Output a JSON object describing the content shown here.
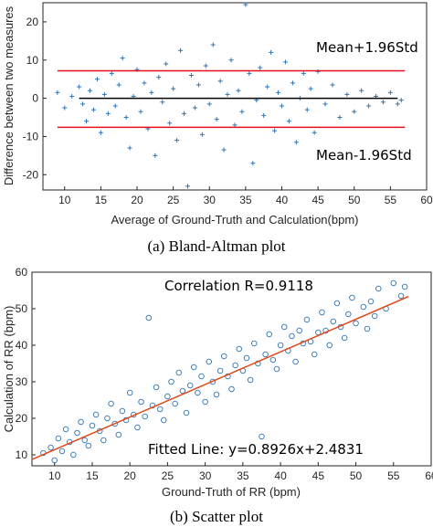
{
  "chart_data": [
    {
      "type": "scatter",
      "marker": "plus",
      "caption": "(a) Bland-Altman plot",
      "xlabel": "Average of Ground-Truth and Calculation(bpm)",
      "ylabel": "Difference between two measures",
      "xlim": [
        7,
        60
      ],
      "ylim": [
        -24,
        25
      ],
      "xticks": [
        10,
        15,
        20,
        25,
        30,
        35,
        40,
        45,
        50,
        55,
        60
      ],
      "yticks": [
        -20,
        -10,
        0,
        10,
        20
      ],
      "grid": false,
      "colors": {
        "points": "#2e75b6",
        "limits": "#e8101c",
        "mean": "#000000"
      },
      "reference_lines": {
        "mean_plus_1_96std": 7.2,
        "mean": 0,
        "mean_minus_1_96std": -7.6
      },
      "annotations": [
        "Mean+1.96Std",
        "Mean-1.96Std"
      ],
      "points": [
        [
          9.0,
          1.5
        ],
        [
          10.0,
          -2.5
        ],
        [
          11.0,
          0.5
        ],
        [
          12.0,
          3.0
        ],
        [
          12.5,
          -1.5
        ],
        [
          13.0,
          -6.0
        ],
        [
          13.5,
          2.0
        ],
        [
          14.0,
          -3.0
        ],
        [
          14.5,
          5.0
        ],
        [
          15.0,
          -9.0
        ],
        [
          15.5,
          1.0
        ],
        [
          16.0,
          -4.0
        ],
        [
          16.5,
          6.5
        ],
        [
          17.0,
          -2.0
        ],
        [
          17.5,
          3.5
        ],
        [
          18.0,
          10.5
        ],
        [
          18.5,
          -5.0
        ],
        [
          19.0,
          -13.0
        ],
        [
          19.5,
          0.5
        ],
        [
          20.0,
          7.5
        ],
        [
          20.5,
          -3.5
        ],
        [
          21.0,
          4.0
        ],
        [
          21.5,
          -8.0
        ],
        [
          22.0,
          1.5
        ],
        [
          22.5,
          -15.0
        ],
        [
          23.0,
          5.5
        ],
        [
          23.5,
          -1.0
        ],
        [
          24.0,
          9.0
        ],
        [
          24.5,
          -6.5
        ],
        [
          25.0,
          2.5
        ],
        [
          25.5,
          -11.0
        ],
        [
          26.0,
          12.5
        ],
        [
          26.5,
          -4.0
        ],
        [
          27.0,
          -23.0
        ],
        [
          27.5,
          6.0
        ],
        [
          28.0,
          -2.5
        ],
        [
          28.5,
          3.5
        ],
        [
          29.0,
          -9.5
        ],
        [
          29.5,
          8.5
        ],
        [
          30.0,
          -1.5
        ],
        [
          30.5,
          14.0
        ],
        [
          31.0,
          -5.5
        ],
        [
          31.5,
          4.5
        ],
        [
          32.0,
          -13.5
        ],
        [
          32.5,
          1.0
        ],
        [
          33.0,
          10.0
        ],
        [
          33.5,
          -7.0
        ],
        [
          34.0,
          2.0
        ],
        [
          34.5,
          -3.5
        ],
        [
          35.0,
          24.5
        ],
        [
          35.5,
          6.5
        ],
        [
          36.0,
          -17.0
        ],
        [
          36.5,
          -0.5
        ],
        [
          37.0,
          8.0
        ],
        [
          37.5,
          -4.5
        ],
        [
          38.0,
          3.0
        ],
        [
          38.5,
          12.0
        ],
        [
          39.0,
          -8.5
        ],
        [
          39.5,
          1.5
        ],
        [
          40.0,
          -2.0
        ],
        [
          40.5,
          9.5
        ],
        [
          41.0,
          -6.0
        ],
        [
          41.5,
          4.0
        ],
        [
          42.0,
          -11.5
        ],
        [
          42.5,
          0.0
        ],
        [
          43.0,
          6.5
        ],
        [
          43.5,
          -3.0
        ],
        [
          44.0,
          2.5
        ],
        [
          44.5,
          -9.0
        ],
        [
          45.0,
          7.0
        ],
        [
          46.0,
          -1.5
        ],
        [
          47.0,
          3.5
        ],
        [
          48.0,
          -5.0
        ],
        [
          49.0,
          1.0
        ],
        [
          50.0,
          -3.5
        ],
        [
          51.0,
          2.0
        ],
        [
          52.0,
          -2.0
        ],
        [
          53.0,
          0.5
        ],
        [
          54.0,
          -1.0
        ],
        [
          55.0,
          1.5
        ],
        [
          56.0,
          -1.5
        ],
        [
          56.5,
          -0.5
        ]
      ]
    },
    {
      "type": "scatter",
      "marker": "circle",
      "caption": "(b) Scatter plot",
      "xlabel": "Ground-Truth of RR (bpm)",
      "ylabel": "Calculation of RR (bpm)",
      "xlim": [
        7,
        60
      ],
      "ylim": [
        7,
        60
      ],
      "xticks": [
        10,
        15,
        20,
        25,
        30,
        35,
        40,
        45,
        50,
        55,
        60
      ],
      "yticks": [
        10,
        20,
        30,
        40,
        50,
        60
      ],
      "grid": false,
      "colors": {
        "points": "#2e75b6",
        "fit_line": "#e0491b"
      },
      "fit_line": {
        "slope": 0.8926,
        "intercept": 2.4831,
        "x_range": [
          7,
          57
        ]
      },
      "annotations": [
        "Correlation R=0.9118",
        "Fitted Line: y=0.8926x+2.4831"
      ],
      "points": [
        [
          8.5,
          10.5
        ],
        [
          9.5,
          12.0
        ],
        [
          10.0,
          8.5
        ],
        [
          10.5,
          14.5
        ],
        [
          11.0,
          11.0
        ],
        [
          11.5,
          17.0
        ],
        [
          12.0,
          13.5
        ],
        [
          12.5,
          10.0
        ],
        [
          13.0,
          16.0
        ],
        [
          13.5,
          19.0
        ],
        [
          14.0,
          14.0
        ],
        [
          14.5,
          12.5
        ],
        [
          15.0,
          18.0
        ],
        [
          15.5,
          21.0
        ],
        [
          16.0,
          16.5
        ],
        [
          16.5,
          14.0
        ],
        [
          17.0,
          20.0
        ],
        [
          17.5,
          24.0
        ],
        [
          18.0,
          18.5
        ],
        [
          18.5,
          15.5
        ],
        [
          19.0,
          22.0
        ],
        [
          19.5,
          19.5
        ],
        [
          20.0,
          27.0
        ],
        [
          20.5,
          21.0
        ],
        [
          21.0,
          17.5
        ],
        [
          21.5,
          24.5
        ],
        [
          22.0,
          20.5
        ],
        [
          22.5,
          47.5
        ],
        [
          23.0,
          23.5
        ],
        [
          23.5,
          28.5
        ],
        [
          24.0,
          22.5
        ],
        [
          24.5,
          19.5
        ],
        [
          25.0,
          26.0
        ],
        [
          25.5,
          30.0
        ],
        [
          26.0,
          24.0
        ],
        [
          26.5,
          32.5
        ],
        [
          27.0,
          27.5
        ],
        [
          27.5,
          21.5
        ],
        [
          28.0,
          29.0
        ],
        [
          28.5,
          34.0
        ],
        [
          29.0,
          27.0
        ],
        [
          29.5,
          31.5
        ],
        [
          30.0,
          24.5
        ],
        [
          30.5,
          35.5
        ],
        [
          31.0,
          30.0
        ],
        [
          31.5,
          26.5
        ],
        [
          32.0,
          33.0
        ],
        [
          32.5,
          37.0
        ],
        [
          33.0,
          31.5
        ],
        [
          33.5,
          28.0
        ],
        [
          34.0,
          34.5
        ],
        [
          34.5,
          39.0
        ],
        [
          35.0,
          33.0
        ],
        [
          35.5,
          36.5
        ],
        [
          36.0,
          30.5
        ],
        [
          36.5,
          40.5
        ],
        [
          37.0,
          35.0
        ],
        [
          37.5,
          15.0
        ],
        [
          38.0,
          37.5
        ],
        [
          38.5,
          43.0
        ],
        [
          39.0,
          36.0
        ],
        [
          39.5,
          33.5
        ],
        [
          40.0,
          40.0
        ],
        [
          40.5,
          45.0
        ],
        [
          41.0,
          38.5
        ],
        [
          41.5,
          42.5
        ],
        [
          42.0,
          35.5
        ],
        [
          42.5,
          44.0
        ],
        [
          43.0,
          40.5
        ],
        [
          43.5,
          47.0
        ],
        [
          44.0,
          41.0
        ],
        [
          44.5,
          37.5
        ],
        [
          45.0,
          43.5
        ],
        [
          45.5,
          49.0
        ],
        [
          46.0,
          44.0
        ],
        [
          46.5,
          40.0
        ],
        [
          47.0,
          46.5
        ],
        [
          47.5,
          51.5
        ],
        [
          48.0,
          45.0
        ],
        [
          48.5,
          42.0
        ],
        [
          49.0,
          48.5
        ],
        [
          49.5,
          53.0
        ],
        [
          50.0,
          46.0
        ],
        [
          51.0,
          50.5
        ],
        [
          51.5,
          44.5
        ],
        [
          52.0,
          52.0
        ],
        [
          52.5,
          48.0
        ],
        [
          53.0,
          55.5
        ],
        [
          54.0,
          50.0
        ],
        [
          55.0,
          57.0
        ],
        [
          56.0,
          53.5
        ],
        [
          56.5,
          56.0
        ]
      ]
    }
  ]
}
